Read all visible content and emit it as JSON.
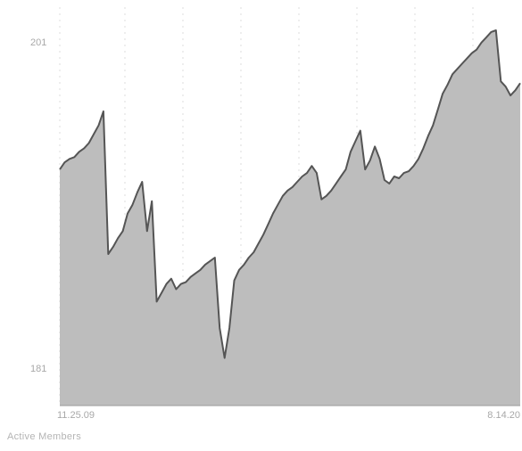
{
  "chart_data": {
    "type": "area",
    "title": "",
    "x_tick_labels": [
      "11.25.09",
      "8.14.20"
    ],
    "y_tick_labels": [
      "201",
      "181"
    ],
    "ylim": [
      180.6,
      202.1
    ],
    "grid": true,
    "colors": {
      "fill": "#bdbdbd",
      "line": "#555555",
      "grid": "#c8c8c8",
      "text": "#a8a8a8"
    },
    "series": [
      {
        "values": [
          194.0,
          194.4,
          194.6,
          194.7,
          195.0,
          195.2,
          195.5,
          196.0,
          196.5,
          197.3,
          189.2,
          189.6,
          190.1,
          190.5,
          191.5,
          192.0,
          192.7,
          193.3,
          190.5,
          192.2,
          186.5,
          187.0,
          187.5,
          187.8,
          187.2,
          187.5,
          187.6,
          187.9,
          188.1,
          188.3,
          188.6,
          188.8,
          189.0,
          185.0,
          183.3,
          185.0,
          187.7,
          188.3,
          188.6,
          189.0,
          189.3,
          189.8,
          190.3,
          190.9,
          191.5,
          192.0,
          192.5,
          192.8,
          193.0,
          193.3,
          193.6,
          193.8,
          194.2,
          193.8,
          192.3,
          192.5,
          192.8,
          193.2,
          193.6,
          194.0,
          195.0,
          195.6,
          196.2,
          194.0,
          194.5,
          195.3,
          194.6,
          193.4,
          193.2,
          193.6,
          193.5,
          193.8,
          193.9,
          194.2,
          194.6,
          195.2,
          195.9,
          196.5,
          197.4,
          198.3,
          198.8,
          199.4,
          199.7,
          200.0,
          200.3,
          200.6,
          200.8,
          201.2,
          201.5,
          201.8,
          201.9,
          199.0,
          198.7,
          198.2,
          198.5,
          198.9
        ]
      }
    ]
  },
  "footer": {
    "label": "Active Members"
  }
}
